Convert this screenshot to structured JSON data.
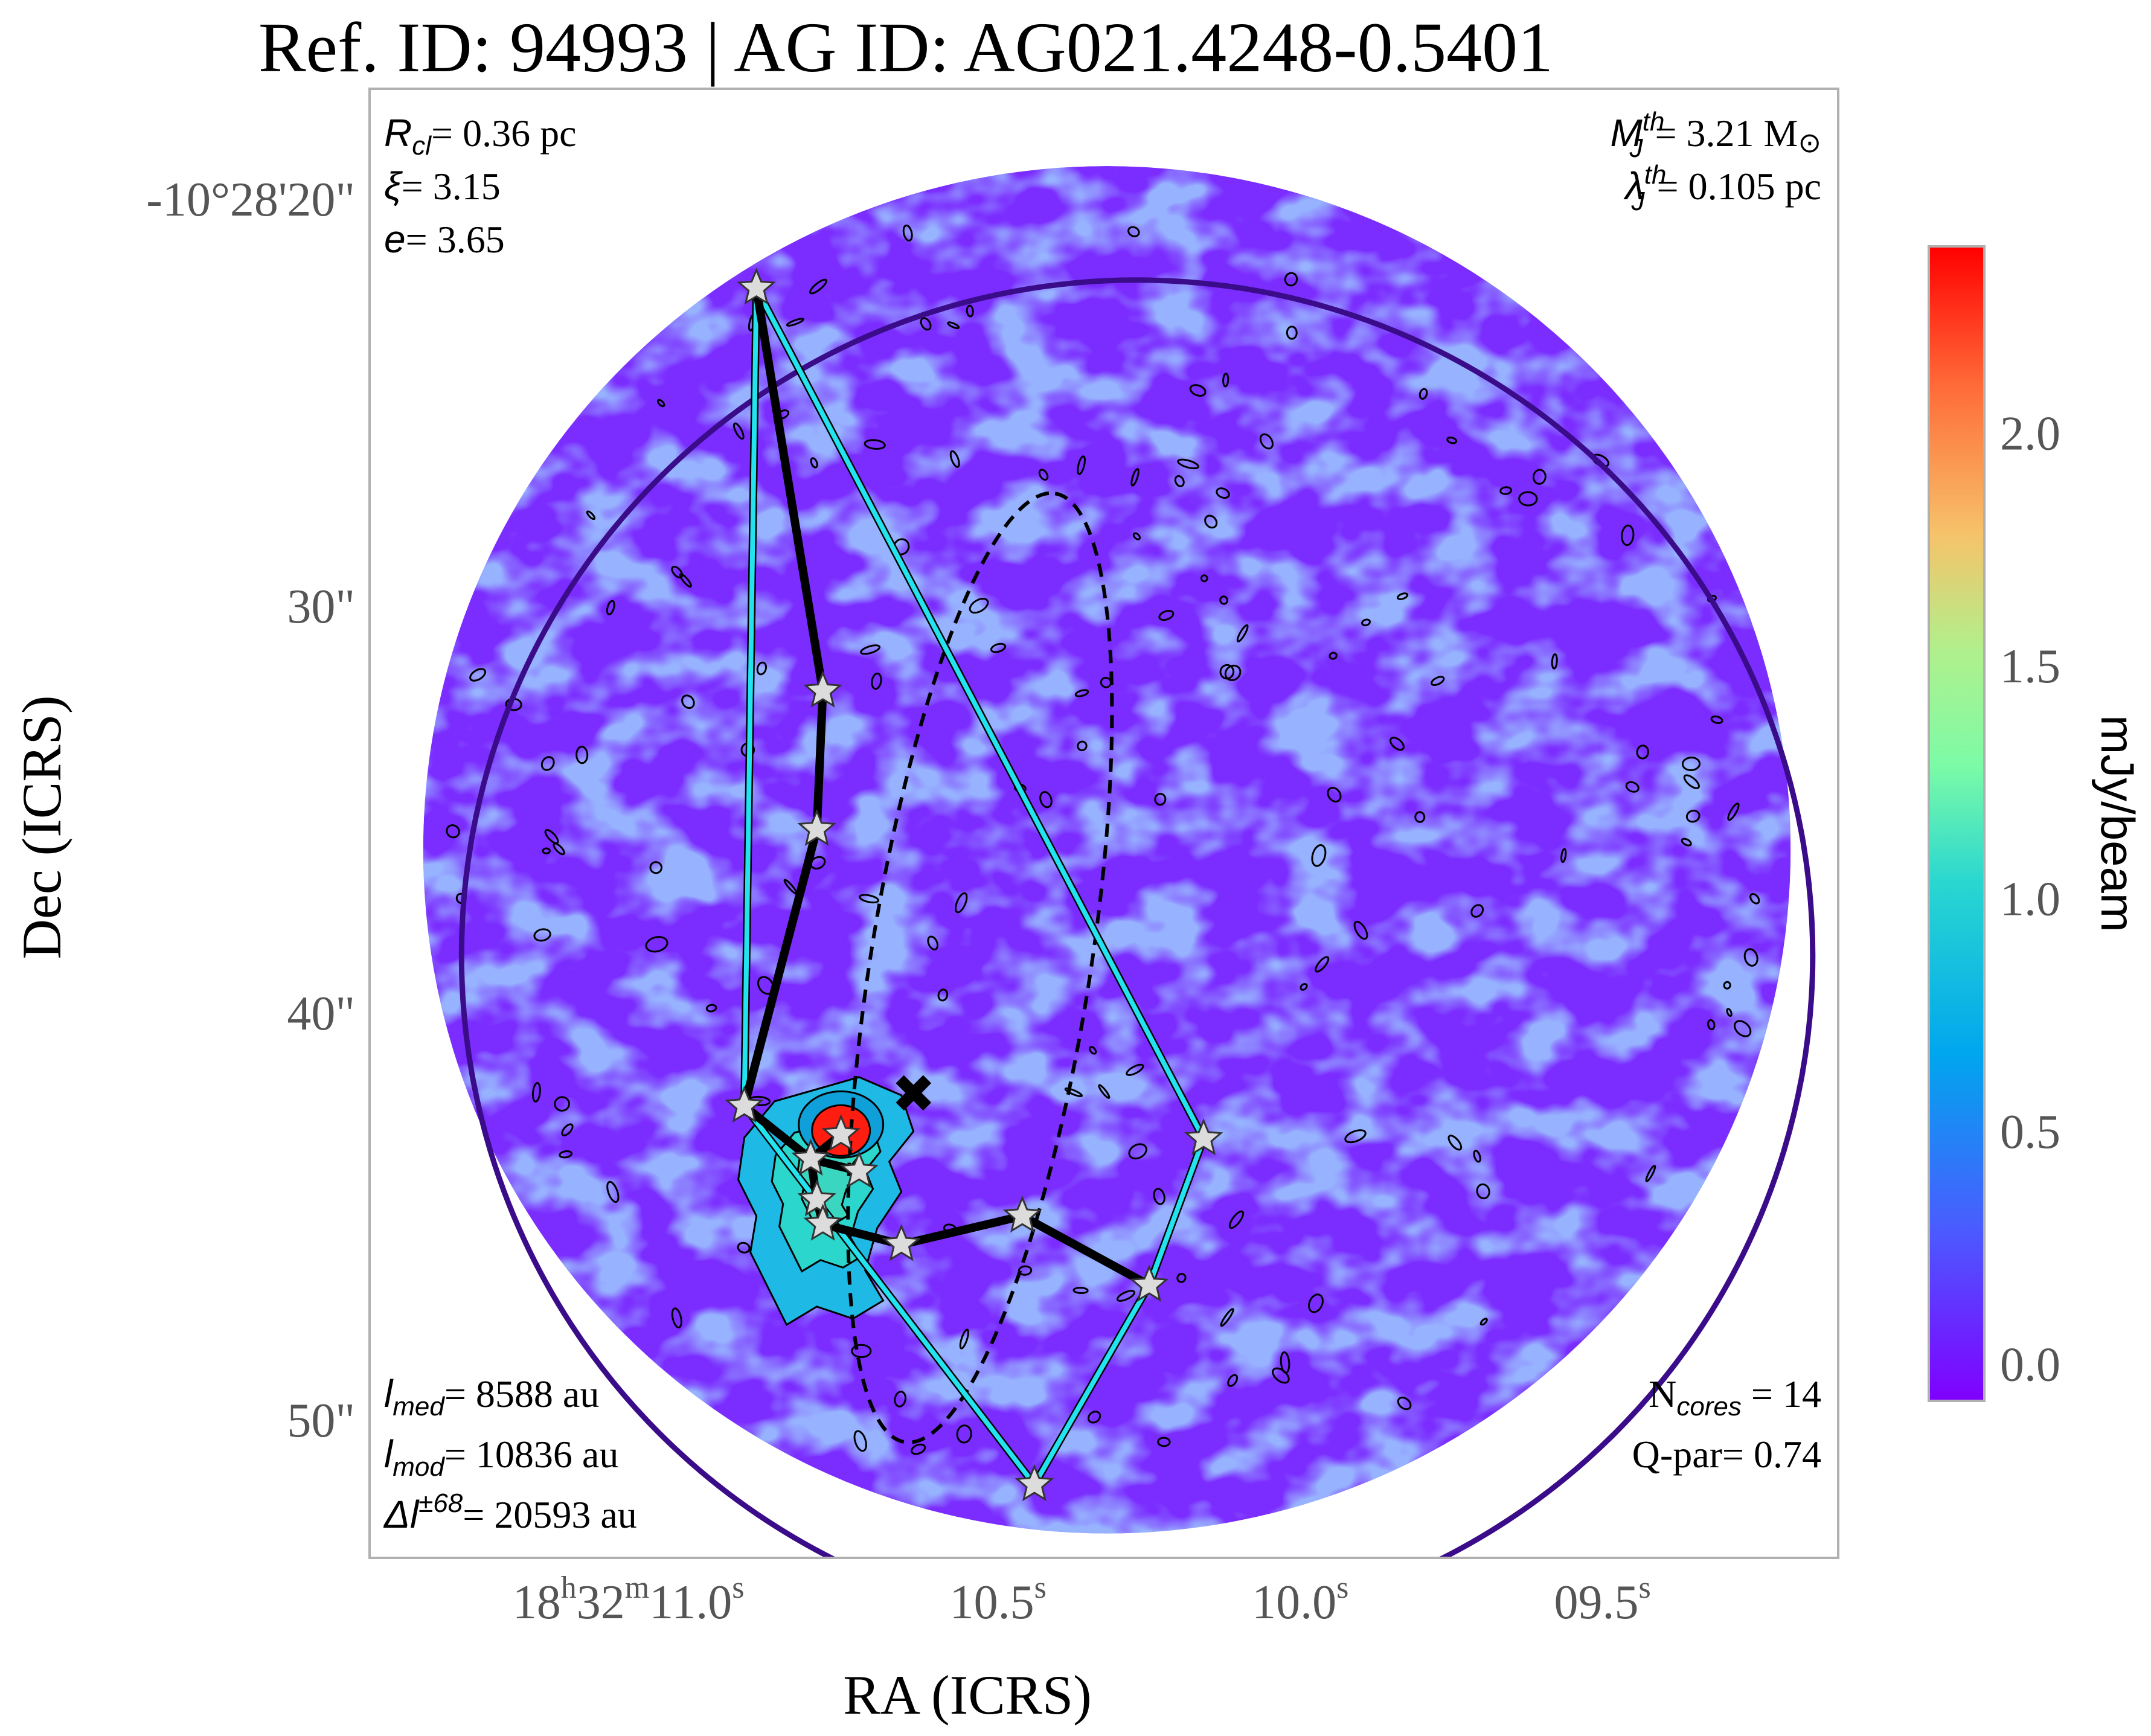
{
  "chart_data": {
    "type": "scatter",
    "title": "Ref. ID: 94993 | AG ID: AG021.4248-0.5401",
    "xlabel": "RA (ICRS)",
    "ylabel": "Dec (ICRS)",
    "x_ticks": [
      {
        "value": 11.0,
        "label": "18h32m11.0s"
      },
      {
        "value": 10.5,
        "label": "10.5s"
      },
      {
        "value": 10.0,
        "label": "10.0s"
      },
      {
        "value": 9.5,
        "label": "09.5s"
      }
    ],
    "y_ticks": [
      {
        "value": 20,
        "label": "-10°28'20\""
      },
      {
        "value": 30,
        "label": "30\""
      },
      {
        "value": 40,
        "label": "40\""
      },
      {
        "value": 50,
        "label": "50\""
      }
    ],
    "xlim": [
      11.62,
      9.19
    ],
    "ylim": [
      53.4,
      17.3
    ],
    "colorbar": {
      "label": "mJy/beam",
      "ticks": [
        "0.0",
        "0.5",
        "1.0",
        "1.5",
        "2.0"
      ],
      "tick_values": [
        0.0,
        0.5,
        1.0,
        1.5,
        2.0
      ],
      "range": [
        -0.08,
        2.4
      ],
      "colormap": "rainbow"
    },
    "annotations_left_top": {
      "r_cl": {
        "sym": "R",
        "sub": "cl",
        "value": "= 0.36 pc"
      },
      "xi": {
        "sym": "ξ",
        "value": "= 3.15"
      },
      "e": {
        "sym": "e",
        "value": "= 3.65"
      }
    },
    "annotations_right_top": {
      "mj": {
        "sym": "M",
        "sub": "J",
        "sup": "th",
        "value": "= 3.21 M",
        "unit_symbol": "⊙"
      },
      "lj": {
        "sym": "λ",
        "sub": "J",
        "sup": "th",
        "value": "= 0.105 pc"
      }
    },
    "annotations_left_bottom": {
      "lmed": {
        "sym": "l",
        "sub": "med",
        "value": "= 8588 au"
      },
      "lmod": {
        "sym": "l",
        "sub": "mod",
        "value": "= 10836 au"
      },
      "dl": {
        "sym": "Δl",
        "sup": "±68",
        "value": "= 20593 au"
      }
    },
    "annotations_right_bottom": {
      "ncores": {
        "sym": "N",
        "sub": "cores",
        "value": " = 14"
      },
      "qpar": {
        "sym": "Q-par",
        "value": "= 0.74"
      }
    },
    "cores": [
      {
        "ra": 10.98,
        "dec": 22.2
      },
      {
        "ra": 10.87,
        "dec": 32.1
      },
      {
        "ra": 10.88,
        "dec": 35.5
      },
      {
        "ra": 11.0,
        "dec": 42.3
      },
      {
        "ra": 10.84,
        "dec": 43.0
      },
      {
        "ra": 10.89,
        "dec": 43.6
      },
      {
        "ra": 10.81,
        "dec": 43.9
      },
      {
        "ra": 10.88,
        "dec": 44.6
      },
      {
        "ra": 10.87,
        "dec": 45.2
      },
      {
        "ra": 10.74,
        "dec": 45.7
      },
      {
        "ra": 10.54,
        "dec": 45.0
      },
      {
        "ra": 10.33,
        "dec": 46.7
      },
      {
        "ra": 10.24,
        "dec": 43.1
      },
      {
        "ra": 10.52,
        "dec": 51.6
      }
    ],
    "mst_edges": [
      [
        0,
        1
      ],
      [
        1,
        2
      ],
      [
        2,
        3
      ],
      [
        3,
        5
      ],
      [
        5,
        4
      ],
      [
        5,
        6
      ],
      [
        5,
        7
      ],
      [
        7,
        8
      ],
      [
        8,
        9
      ],
      [
        9,
        10
      ],
      [
        10,
        11
      ]
    ],
    "hull_order": [
      0,
      12,
      11,
      13,
      3
    ],
    "peak_marker": {
      "ra": 10.72,
      "dec": 42.0,
      "symbol": "✖"
    },
    "ellipse": {
      "center_ra": 10.61,
      "center_dec": 38.9,
      "semi_major_arcsec": 11.8,
      "semi_minor_arcsec": 2.7,
      "angle_deg": -81
    },
    "cluster_circle": {
      "center_ra": 10.35,
      "center_dec": 38.6,
      "radius_arcsec": 16.6
    },
    "field_of_view": {
      "center_ra": 10.4,
      "center_dec": 36.0,
      "radius_arcsec": 16.8
    },
    "colors": {
      "background_map": "#7b2cff",
      "noise": "#4f74ff",
      "mst": "#000000",
      "hull": "#22e3ee",
      "cluster_circle": "#3b0c8a",
      "star_fill": "#dcdcdc"
    }
  }
}
